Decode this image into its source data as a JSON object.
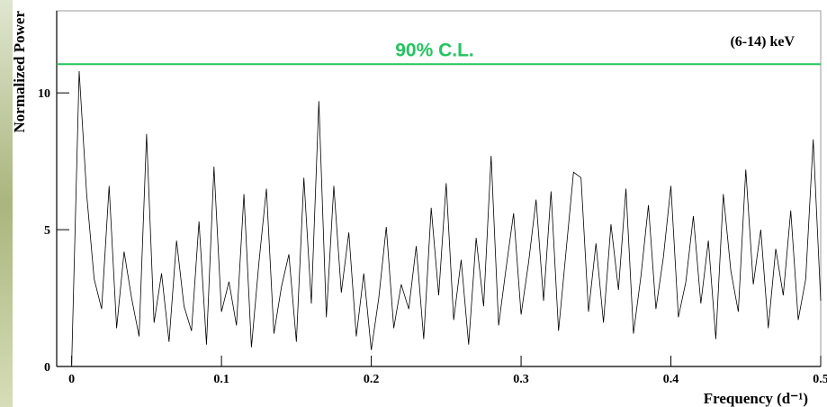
{
  "chart_data": {
    "type": "line",
    "y_label": "Normalized Power",
    "x_label": "Frequency (d⁻¹)",
    "annotation": "(6-14) keV",
    "threshold": {
      "value": 11.05,
      "label": "90% C.L.",
      "color": "#22c55e"
    },
    "color": "#000000",
    "x": [
      0,
      0.005,
      0.01,
      0.015,
      0.02,
      0.025,
      0.03,
      0.035,
      0.04,
      0.045,
      0.05,
      0.055,
      0.06,
      0.065,
      0.07,
      0.075,
      0.08,
      0.085,
      0.09,
      0.095,
      0.1,
      0.105,
      0.11,
      0.115,
      0.12,
      0.125,
      0.13,
      0.135,
      0.14,
      0.145,
      0.15,
      0.155,
      0.16,
      0.165,
      0.17,
      0.175,
      0.18,
      0.185,
      0.19,
      0.195,
      0.2,
      0.205,
      0.21,
      0.215,
      0.22,
      0.225,
      0.23,
      0.235,
      0.24,
      0.245,
      0.25,
      0.255,
      0.26,
      0.265,
      0.27,
      0.275,
      0.28,
      0.285,
      0.29,
      0.295,
      0.3,
      0.305,
      0.31,
      0.315,
      0.32,
      0.325,
      0.33,
      0.335,
      0.34,
      0.345,
      0.35,
      0.355,
      0.36,
      0.365,
      0.37,
      0.375,
      0.38,
      0.385,
      0.39,
      0.395,
      0.4,
      0.405,
      0.41,
      0.415,
      0.42,
      0.425,
      0.43,
      0.435,
      0.44,
      0.445,
      0.45,
      0.455,
      0.46,
      0.465,
      0.47,
      0.475,
      0.48,
      0.485,
      0.49,
      0.495,
      0.5
    ],
    "values": [
      0.1,
      10.8,
      6.3,
      3.2,
      2.1,
      6.6,
      1.4,
      4.2,
      2.5,
      1.1,
      8.5,
      1.6,
      3.4,
      0.9,
      4.6,
      2.2,
      1.3,
      5.3,
      0.8,
      7.3,
      2.0,
      3.1,
      1.5,
      6.3,
      0.7,
      3.8,
      6.5,
      1.2,
      2.9,
      4.1,
      0.9,
      6.9,
      2.3,
      9.7,
      1.8,
      6.6,
      2.7,
      4.9,
      1.1,
      3.4,
      0.6,
      2.5,
      5.1,
      1.4,
      3.0,
      2.1,
      4.4,
      1.0,
      5.8,
      2.6,
      6.7,
      1.7,
      3.9,
      0.8,
      4.7,
      2.2,
      7.7,
      1.5,
      3.6,
      5.6,
      1.9,
      3.8,
      6.1,
      2.4,
      6.4,
      1.3,
      4.2,
      7.1,
      6.9,
      2.0,
      4.5,
      1.6,
      5.2,
      2.8,
      6.5,
      1.2,
      3.3,
      5.9,
      2.1,
      4.0,
      6.6,
      1.8,
      3.1,
      5.5,
      2.3,
      4.6,
      1.0,
      6.3,
      3.5,
      2.0,
      7.2,
      3.0,
      5.0,
      1.4,
      4.3,
      2.6,
      5.7,
      1.7,
      3.2,
      8.3,
      2.4
    ],
    "xlim": [
      -0.01,
      0.5
    ],
    "ylim": [
      0,
      13
    ],
    "xticks": [
      0,
      0.1,
      0.2,
      0.3,
      0.4,
      0.5
    ],
    "yticks": [
      0,
      5,
      10
    ]
  }
}
